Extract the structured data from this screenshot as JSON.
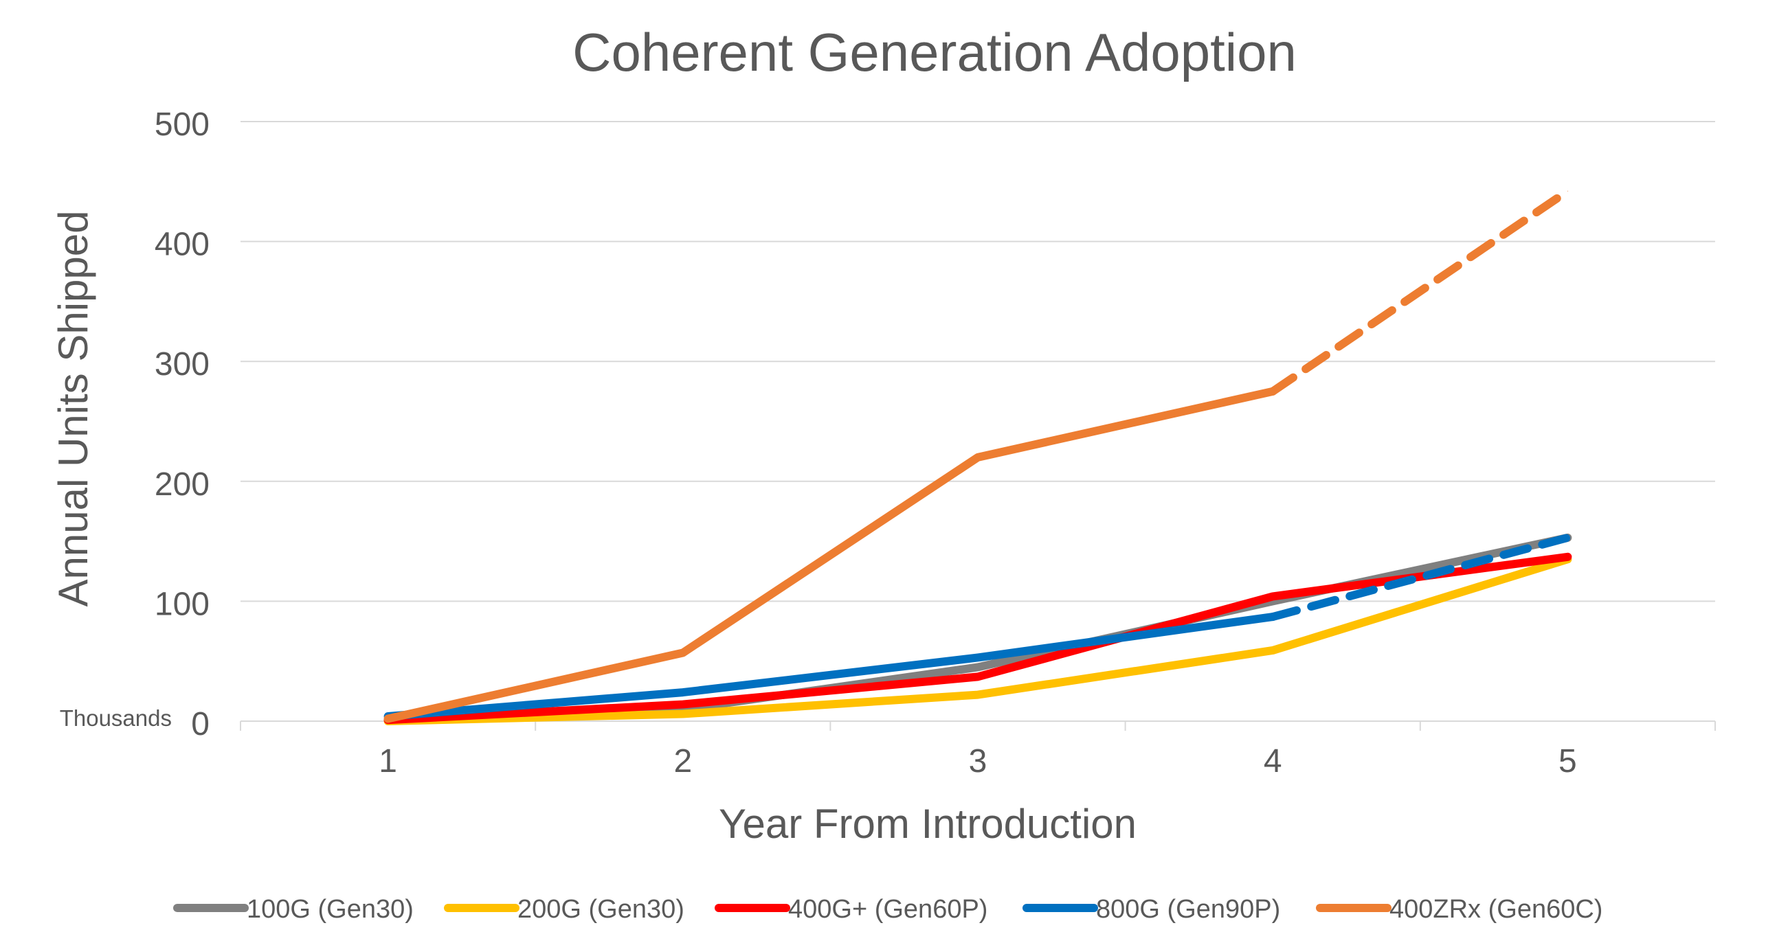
{
  "chart_data": {
    "type": "line",
    "title": "Coherent Generation Adoption",
    "xlabel": "Year From Introduction",
    "ylabel": "Annual Units  Shipped",
    "y_units_label": "Thousands",
    "categories": [
      "1",
      "2",
      "3",
      "4",
      "5"
    ],
    "x": [
      1,
      2,
      3,
      4,
      5
    ],
    "ylim": [
      0,
      500
    ],
    "yticks": [
      "0",
      "100",
      "200",
      "300",
      "400",
      "500"
    ],
    "grid": true,
    "legend_position": "bottom",
    "series": [
      {
        "name": "100G (Gen30)",
        "color": "#808080",
        "values": [
          1,
          10,
          45,
          100,
          153
        ],
        "dashed_from_index": null
      },
      {
        "name": "200G (Gen30)",
        "color": "#FFC000",
        "values": [
          0,
          6,
          22,
          59,
          135
        ],
        "dashed_from_index": null
      },
      {
        "name": "400G+ (Gen60P)",
        "color": "#FF0000",
        "values": [
          1,
          14,
          37,
          104,
          137
        ],
        "dashed_from_index": null
      },
      {
        "name": "800G (Gen90P)",
        "color": "#0070C0",
        "values": [
          4,
          24,
          53,
          87,
          153
        ],
        "dashed_from_index": 3
      },
      {
        "name": "400ZRx (Gen60C)",
        "color": "#ED7D31",
        "values": [
          2,
          57,
          220,
          275,
          442
        ],
        "dashed_from_index": 3
      }
    ]
  }
}
